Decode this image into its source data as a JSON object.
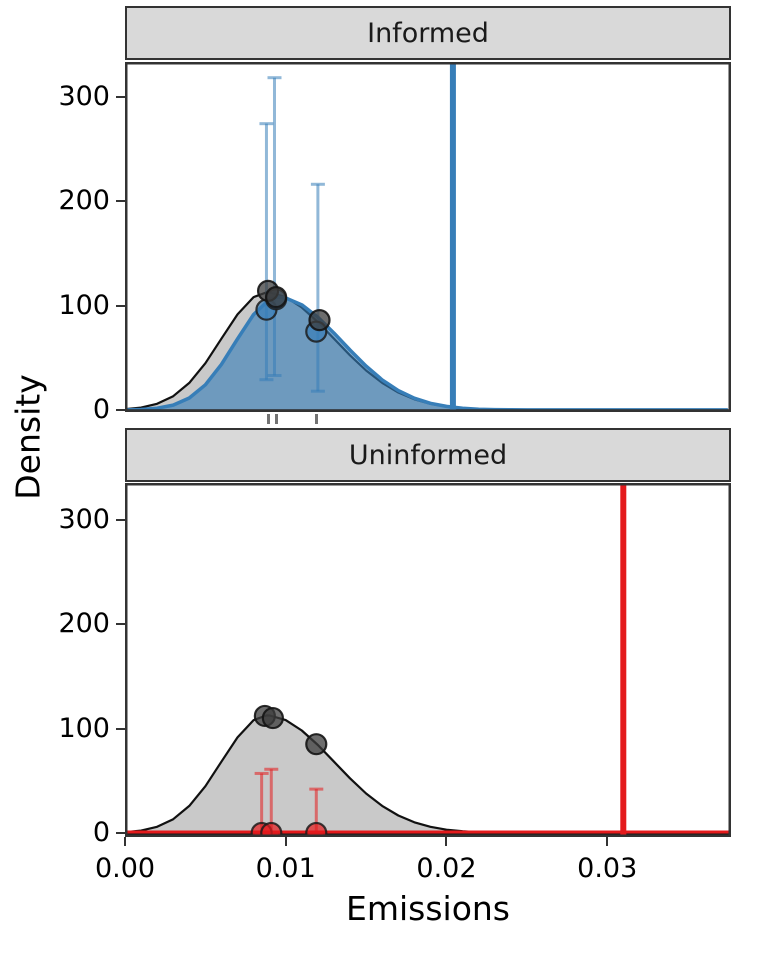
{
  "figure": {
    "xlabel": "Emissions",
    "ylabel": "Density",
    "x_ticks": {
      "values": [
        0,
        0.01,
        0.02,
        0.03
      ],
      "labels": [
        "0.00",
        "0.01",
        "0.02",
        "0.03"
      ]
    },
    "y_ticks": {
      "values": [
        0,
        100,
        200,
        300
      ],
      "labels": [
        "0",
        "100",
        "200",
        "300"
      ]
    },
    "xlim": [
      0,
      0.0377
    ],
    "ylim": [
      0,
      333
    ],
    "colors": {
      "informed": "#377eb8",
      "uninformed": "#e41a1c",
      "prior_fill": "#c6c6c6",
      "prior_outline": "#111111",
      "dark_point": "#3c3c3c",
      "frame": "#333333",
      "strip_bg": "#d9d9d9",
      "rug": "#737373",
      "axis_line": "#1a1a1a"
    }
  },
  "chart_data": [
    {
      "panel": "Informed",
      "type": "area",
      "color": "#377eb8",
      "curves": [
        {
          "name": "prior-density",
          "role": "prior",
          "x": [
            0,
            0.001,
            0.002,
            0.003,
            0.004,
            0.005,
            0.006,
            0.007,
            0.008,
            0.0088,
            0.009,
            0.01,
            0.011,
            0.012,
            0.013,
            0.014,
            0.015,
            0.016,
            0.017,
            0.018,
            0.019,
            0.02,
            0.021,
            0.022,
            0.023,
            0.024,
            0.025,
            0.026,
            0.028,
            0.0375
          ],
          "y": [
            0.8,
            2.3,
            5.9,
            13.2,
            25.9,
            44.8,
            68.2,
            91.5,
            108,
            112.5,
            112.4,
            108,
            98.1,
            84.2,
            68.2,
            52.3,
            37.8,
            25.9,
            16.7,
            10.2,
            5.9,
            3.2,
            1.7,
            0.8,
            0.4,
            0.2,
            0.1,
            0.1,
            0.1,
            0.1
          ]
        },
        {
          "name": "informed-posterior-density",
          "role": "posterior",
          "x": [
            0,
            0.001,
            0.002,
            0.003,
            0.004,
            0.005,
            0.006,
            0.007,
            0.008,
            0.009,
            0.0095,
            0.01,
            0.011,
            0.012,
            0.013,
            0.014,
            0.015,
            0.016,
            0.017,
            0.018,
            0.019,
            0.02,
            0.021,
            0.022,
            0.023,
            0.024,
            0.025,
            0.026,
            0.028,
            0.0375
          ],
          "y": [
            0.1,
            0.5,
            1.7,
            4.7,
            11.5,
            24.1,
            43.6,
            68,
            91.4,
            106,
            108,
            107.2,
            100.7,
            88.8,
            73.6,
            57.4,
            42,
            28.8,
            18.6,
            11.3,
            6.4,
            3.4,
            1.7,
            0.8,
            0.4,
            0.2,
            0.1,
            0.1,
            0.1,
            0.1
          ]
        }
      ],
      "true_value_line": 0.0204,
      "dark_points": [
        [
          0.0089,
          114
        ],
        [
          0.0094,
          108
        ],
        [
          0.0121,
          86
        ]
      ],
      "colored_points": [
        [
          0.0088,
          96
        ],
        [
          0.0094,
          106
        ],
        [
          0.0119,
          75
        ]
      ],
      "error_bars": [
        [
          0.0088,
          29,
          274
        ],
        [
          0.0093,
          33,
          318
        ],
        [
          0.012,
          18,
          216
        ]
      ],
      "rug": [
        0.0089,
        0.0094,
        0.0119
      ],
      "baseline": false
    },
    {
      "panel": "Uninformed",
      "type": "area",
      "color": "#e41a1c",
      "curves": [
        {
          "name": "prior-density",
          "role": "prior",
          "x": [
            0,
            0.001,
            0.002,
            0.003,
            0.004,
            0.005,
            0.006,
            0.007,
            0.008,
            0.0088,
            0.009,
            0.01,
            0.011,
            0.012,
            0.013,
            0.014,
            0.015,
            0.016,
            0.017,
            0.018,
            0.019,
            0.02,
            0.021,
            0.022,
            0.023,
            0.024,
            0.025,
            0.026,
            0.028,
            0.0375
          ],
          "y": [
            0.8,
            2.3,
            5.9,
            13.2,
            25.9,
            44.8,
            68.2,
            91.5,
            108,
            112.5,
            112.4,
            108,
            98.1,
            84.2,
            68.2,
            52.3,
            37.8,
            25.9,
            16.7,
            10.2,
            5.9,
            3.2,
            1.7,
            0.8,
            0.4,
            0.2,
            0.1,
            0.1,
            0.1,
            0.1
          ]
        }
      ],
      "true_value_line": 0.031,
      "dark_points": [
        [
          0.0087,
          112
        ],
        [
          0.0092,
          110
        ],
        [
          0.0119,
          85
        ]
      ],
      "colored_points": [
        [
          0.0085,
          0
        ],
        [
          0.0091,
          0
        ],
        [
          0.0119,
          0
        ]
      ],
      "error_bars": [
        [
          0.0085,
          0,
          57
        ],
        [
          0.0091,
          0,
          61
        ],
        [
          0.0119,
          0,
          42
        ]
      ],
      "rug": [],
      "baseline": true
    }
  ]
}
